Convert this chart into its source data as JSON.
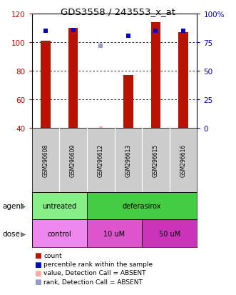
{
  "title": "GDS3558 / 243553_x_at",
  "samples": [
    "GSM296608",
    "GSM296609",
    "GSM296612",
    "GSM296613",
    "GSM296615",
    "GSM296616"
  ],
  "bar_heights": [
    101,
    110,
    null,
    77,
    114,
    107
  ],
  "bar_color": "#bb1100",
  "absent_bar_height": 41,
  "absent_bar_color": "#ffaaaa",
  "percentile_ranks": [
    85,
    86,
    null,
    81,
    85,
    85
  ],
  "percentile_rank_color": "#0000cc",
  "absent_rank": 72,
  "absent_rank_color": "#9999cc",
  "ylim_left": [
    40,
    120
  ],
  "ylim_right": [
    0,
    100
  ],
  "yticks_left": [
    40,
    60,
    80,
    100,
    120
  ],
  "yticks_right": [
    0,
    25,
    50,
    75,
    100
  ],
  "ytick_labels_right": [
    "0",
    "25",
    "50",
    "75",
    "100%"
  ],
  "agent_groups": [
    {
      "label": "untreated",
      "start": 0,
      "end": 2,
      "color": "#88ee88"
    },
    {
      "label": "deferasirox",
      "start": 2,
      "end": 6,
      "color": "#44cc44"
    }
  ],
  "dose_groups": [
    {
      "label": "control",
      "start": 0,
      "end": 2,
      "color": "#ee88ee"
    },
    {
      "label": "10 uM",
      "start": 2,
      "end": 4,
      "color": "#dd55cc"
    },
    {
      "label": "50 uM",
      "start": 4,
      "end": 6,
      "color": "#cc33bb"
    }
  ],
  "legend_items": [
    {
      "color": "#bb1100",
      "label": "count"
    },
    {
      "color": "#0000cc",
      "label": "percentile rank within the sample"
    },
    {
      "color": "#ffaaaa",
      "label": "value, Detection Call = ABSENT"
    },
    {
      "color": "#9999cc",
      "label": "rank, Detection Call = ABSENT"
    }
  ],
  "agent_label": "agent",
  "dose_label": "dose",
  "bg_color": "#ffffff",
  "plot_bg": "#ffffff",
  "left_tick_color": "#cc0000",
  "right_tick_color": "#0000bb",
  "bar_width": 0.35,
  "absent_bar_width": 0.12
}
